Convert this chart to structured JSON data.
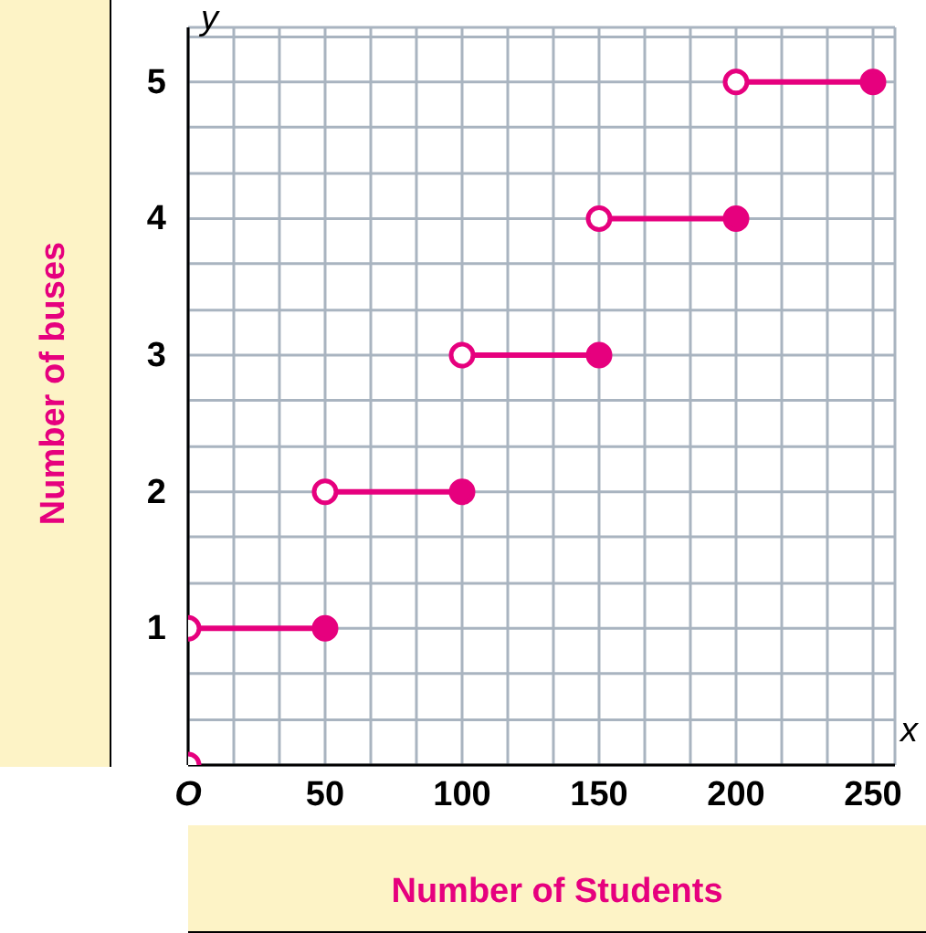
{
  "chart_data": {
    "type": "line",
    "xlabel": "Number of Students",
    "ylabel": "Number of buses",
    "annotations": [
      "x",
      "y"
    ],
    "xlim": [
      0,
      258
    ],
    "ylim": [
      0,
      5.4
    ],
    "xticks": [
      {
        "value": 0,
        "label": "O"
      },
      {
        "value": 16.67,
        "label": null
      },
      {
        "value": 33.33,
        "label": null
      },
      50,
      {
        "value": 66.67,
        "label": null
      },
      {
        "value": 83.33,
        "label": null
      },
      100,
      {
        "value": 116.67,
        "label": null
      },
      {
        "value": 133.33,
        "label": null
      },
      150,
      {
        "value": 166.67,
        "label": null
      },
      {
        "value": 183.33,
        "label": null
      },
      200,
      {
        "value": 216.67,
        "label": null
      },
      {
        "value": 233.33,
        "label": null
      },
      250
    ],
    "yticks": [
      {
        "value": 0.33,
        "label": null
      },
      {
        "value": 0.67,
        "label": null
      },
      1,
      {
        "value": 1.33,
        "label": null
      },
      {
        "value": 1.67,
        "label": null
      },
      2,
      {
        "value": 2.33,
        "label": null
      },
      {
        "value": 2.67,
        "label": null
      },
      3,
      {
        "value": 3.33,
        "label": null
      },
      {
        "value": 3.67,
        "label": null
      },
      4,
      {
        "value": 4.33,
        "label": null
      },
      {
        "value": 4.67,
        "label": null
      },
      5,
      {
        "value": 5.33,
        "label": null
      }
    ],
    "grid": true,
    "marker": "none",
    "series": [
      {
        "x": [
          0,
          50
        ],
        "values": [
          1,
          1
        ],
        "color": "#e6007e"
      },
      {
        "x": [
          50,
          100
        ],
        "values": [
          2,
          2
        ],
        "color": "#e6007e"
      },
      {
        "x": [
          100,
          150
        ],
        "values": [
          3,
          3
        ],
        "color": "#e6007e"
      },
      {
        "x": [
          150,
          200
        ],
        "values": [
          4,
          4
        ],
        "color": "#e6007e"
      },
      {
        "x": [
          200,
          250
        ],
        "values": [
          5,
          5
        ],
        "color": "#e6007e"
      },
      {
        "type": "scatter",
        "marker": "circle",
        "x": [
          0,
          0,
          50,
          100,
          150,
          200
        ],
        "values": [
          0,
          1,
          2,
          3,
          4,
          5
        ],
        "color": "#ffffff"
      },
      {
        "type": "scatter",
        "marker": "circle",
        "x": [
          50,
          100,
          150,
          200,
          250
        ],
        "values": [
          1,
          2,
          3,
          4,
          5
        ],
        "color": "#e6007e"
      }
    ]
  }
}
